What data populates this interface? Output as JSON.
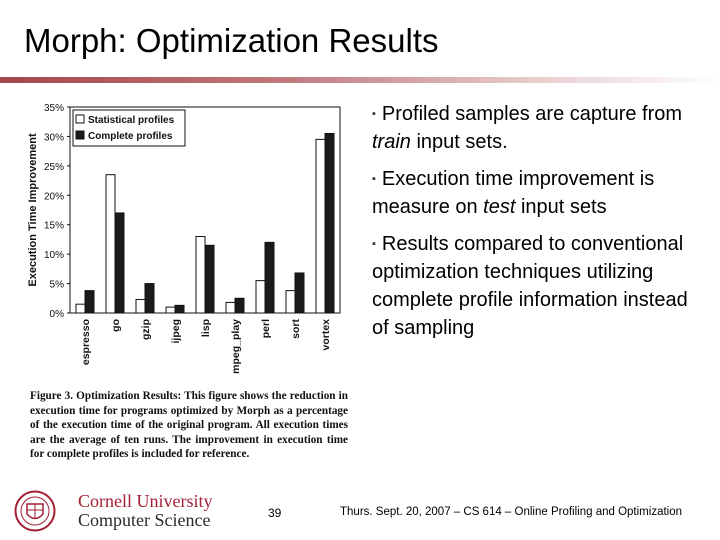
{
  "title": "Morph: Optimization Results",
  "bullets": [
    {
      "parts": [
        {
          "t": "Profiled samples are capture from "
        },
        {
          "t": "train",
          "i": true
        },
        {
          "t": " input sets."
        }
      ]
    },
    {
      "parts": [
        {
          "t": "Execution time improvement is measure on "
        },
        {
          "t": "test",
          "i": true
        },
        {
          "t": " input sets"
        }
      ]
    },
    {
      "parts": [
        {
          "t": "Results compared to conventional optimization techniques utilizing complete profile information instead of sampling"
        }
      ]
    }
  ],
  "chart_data": {
    "type": "bar",
    "ylabel": "Execution Time Improvement",
    "ylim": [
      0,
      35
    ],
    "yticks": [
      "0%",
      "5%",
      "10%",
      "15%",
      "20%",
      "25%",
      "30%",
      "35%"
    ],
    "categories": [
      "espresso",
      "go",
      "gzip",
      "ijpeg",
      "lisp",
      "mpeg_play",
      "perl",
      "sort",
      "vortex"
    ],
    "series": [
      {
        "name": "Statistical profiles",
        "color": "#ffffff",
        "values": [
          1.5,
          23.5,
          2.3,
          1.0,
          13.0,
          1.8,
          5.5,
          3.8,
          29.5
        ]
      },
      {
        "name": "Complete profiles",
        "color": "#1a1a1a",
        "values": [
          3.8,
          17.0,
          5.0,
          1.3,
          11.5,
          2.5,
          12.0,
          6.8,
          30.5
        ]
      }
    ],
    "legend": "top-left"
  },
  "caption": {
    "label": "Figure 3. Optimization Results:",
    "text": " This figure shows the reduction in execution time for programs optimized by Morph as a percentage of the execution time of the original program. All execution times are the average of ten runs. The improvement in execution time for complete profiles is included for reference."
  },
  "logo": {
    "line1": "Cornell University",
    "line2": "Computer Science"
  },
  "page_number": "39",
  "footer": "Thurs. Sept. 20, 2007 – CS 614 – Online Profiling and Optimization"
}
